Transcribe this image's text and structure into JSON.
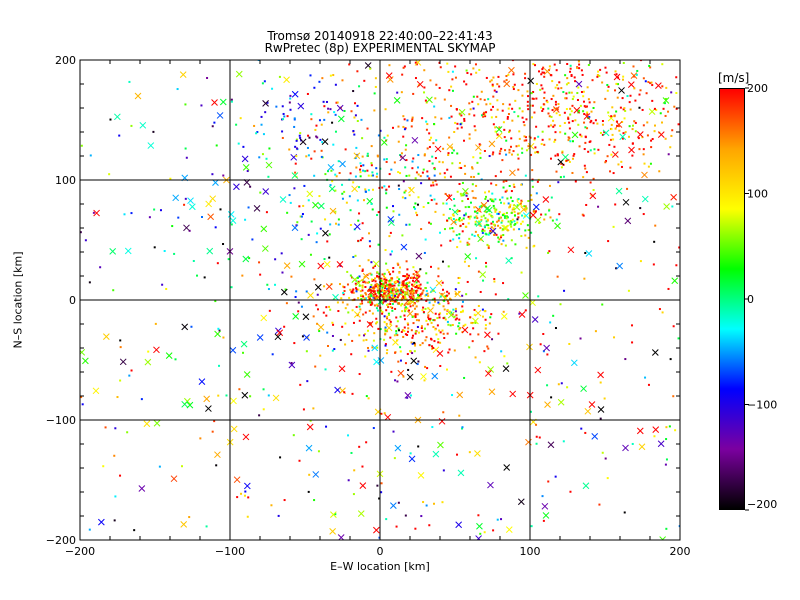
{
  "chart_data": {
    "type": "scatter",
    "title": "Tromsø 20140918 22:40:00–22:41:43",
    "subtitle": "RwPretec (8p) EXPERIMENTAL SKYMAP",
    "xlabel": "E–W location [km]",
    "ylabel": "N–S location [km]",
    "xlim": [
      -200,
      200
    ],
    "ylim": [
      -200,
      200
    ],
    "x_ticks": [
      -200,
      -100,
      0,
      100,
      200
    ],
    "y_ticks": [
      -200,
      -100,
      0,
      100,
      200
    ],
    "grid": true,
    "colorbar": {
      "label": "[m/s]",
      "range": [
        -200,
        200
      ],
      "ticks": [
        200,
        100,
        0,
        -100,
        -200
      ],
      "colors": [
        "#000000",
        "#7b00a0",
        "#0000ff",
        "#00ffff",
        "#00ff00",
        "#ffff00",
        "#ffa500",
        "#ff0000"
      ]
    },
    "markers": [
      "dot",
      "x"
    ],
    "clusters": [
      {
        "x": 5,
        "y": 8,
        "sx": 14,
        "sy": 8,
        "n": 420,
        "v": 150,
        "vs": 90
      },
      {
        "x": 25,
        "y": -15,
        "sx": 28,
        "sy": 20,
        "n": 380,
        "v": 140,
        "vs": 90
      },
      {
        "x": 75,
        "y": 70,
        "sx": 20,
        "sy": 14,
        "n": 260,
        "v": 60,
        "vs": 60
      },
      {
        "x": 130,
        "y": 155,
        "sx": 45,
        "sy": 30,
        "n": 520,
        "v": 160,
        "vs": 90
      },
      {
        "x": 40,
        "y": 130,
        "sx": 50,
        "sy": 50,
        "n": 350,
        "v": 180,
        "vs": 50
      },
      {
        "x": -10,
        "y": 90,
        "sx": 35,
        "sy": 30,
        "n": 140,
        "v": 0,
        "vs": 60
      },
      {
        "x": -55,
        "y": 150,
        "sx": 25,
        "sy": 15,
        "n": 60,
        "v": -80,
        "vs": 40
      },
      {
        "x": -70,
        "y": 50,
        "sx": 60,
        "sy": 60,
        "n": 120,
        "v": -40,
        "vs": 120
      },
      {
        "x": 0,
        "y": -80,
        "sx": 100,
        "sy": 90,
        "n": 260,
        "v": 60,
        "vs": 140
      },
      {
        "x": 0,
        "y": 0,
        "sx": 200,
        "sy": 200,
        "n": 300,
        "v": 20,
        "vs": 160
      }
    ]
  }
}
